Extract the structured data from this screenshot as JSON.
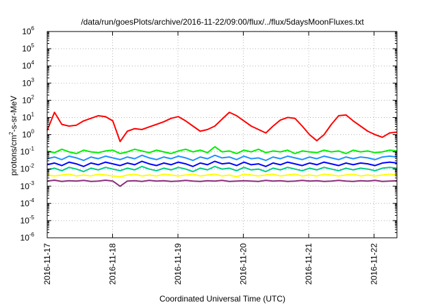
{
  "chart_data": {
    "type": "line",
    "title": "/data/run/goesPlots/archive/2016-11-22/09:00/flux/../flux/5daysMoonFluxes.txt",
    "xlabel": "Coordinated Universal Time (UTC)",
    "ylabel": {
      "base": "protons/cm",
      "sup": "2",
      "rest": "-s-sr-MeV"
    },
    "x_ticks": [
      "2016-11-17",
      "2016-11-18",
      "2016-11-19",
      "2016-11-20",
      "2016-11-21",
      "2016-11-22"
    ],
    "x_tick_days": [
      0,
      1,
      2,
      3,
      4,
      5
    ],
    "xlim_days": [
      0,
      5.35
    ],
    "y_scale": "log",
    "y_ticks": [
      {
        "base": "10",
        "exp": "-6"
      },
      {
        "base": "10",
        "exp": "-5"
      },
      {
        "base": "10",
        "exp": "-4"
      },
      {
        "base": "10",
        "exp": "-3"
      },
      {
        "base": "10",
        "exp": "-2"
      },
      {
        "base": "10",
        "exp": "-1"
      },
      {
        "base": "10",
        "exp": "0"
      },
      {
        "base": "10",
        "exp": "1"
      },
      {
        "base": "10",
        "exp": "2"
      },
      {
        "base": "10",
        "exp": "3"
      },
      {
        "base": "10",
        "exp": "4"
      },
      {
        "base": "10",
        "exp": "5"
      },
      {
        "base": "10",
        "exp": "6"
      }
    ],
    "ylim_log10": [
      -6,
      6
    ],
    "grid": true,
    "series": [
      {
        "color": "#ff0000",
        "y_log10": [
          0.25,
          1.3,
          0.6,
          0.5,
          0.55,
          0.8,
          0.95,
          1.1,
          1.05,
          0.8,
          -0.4,
          0.2,
          0.35,
          0.3,
          0.45,
          0.6,
          0.75,
          0.95,
          1.05,
          0.8,
          0.5,
          0.2,
          0.3,
          0.5,
          0.9,
          1.3,
          1.1,
          0.8,
          0.5,
          0.3,
          0.1,
          0.5,
          0.85,
          1.0,
          0.95,
          0.5,
          0,
          -0.35,
          0,
          0.6,
          1.1,
          1.15,
          0.8,
          0.5,
          0.2,
          0,
          -0.15,
          0.1,
          0.15
        ]
      },
      {
        "color": "#00ee00",
        "y_log10": [
          -0.95,
          -1.05,
          -0.85,
          -1.0,
          -1.1,
          -0.9,
          -1.0,
          -1.05,
          -0.95,
          -0.9,
          -1.1,
          -1.0,
          -0.85,
          -0.95,
          -1.05,
          -0.9,
          -1.0,
          -1.1,
          -0.95,
          -0.85,
          -1.0,
          -0.9,
          -1.05,
          -0.7,
          -1.0,
          -0.95,
          -1.1,
          -0.9,
          -1.0,
          -0.85,
          -1.05,
          -0.95,
          -1.0,
          -0.9,
          -1.1,
          -0.95,
          -1.0,
          -1.05,
          -0.9,
          -1.0,
          -0.95,
          -1.1,
          -0.9,
          -1.0,
          -0.95,
          -1.05,
          -1.0,
          -0.9,
          -0.95
        ]
      },
      {
        "color": "#1e90ff",
        "y_log10": [
          -1.4,
          -1.3,
          -1.45,
          -1.25,
          -1.35,
          -1.5,
          -1.3,
          -1.4,
          -1.25,
          -1.35,
          -1.45,
          -1.3,
          -1.4,
          -1.2,
          -1.35,
          -1.45,
          -1.3,
          -1.4,
          -1.25,
          -1.35,
          -1.5,
          -1.3,
          -1.4,
          -1.2,
          -1.35,
          -1.3,
          -1.45,
          -1.25,
          -1.4,
          -1.35,
          -1.5,
          -1.3,
          -1.4,
          -1.25,
          -1.35,
          -1.45,
          -1.3,
          -1.4,
          -1.25,
          -1.35,
          -1.45,
          -1.3,
          -1.4,
          -1.3,
          -1.35,
          -1.45,
          -1.3,
          -1.25,
          -1.3
        ]
      },
      {
        "color": "#0000ff",
        "y_log10": [
          -1.75,
          -1.65,
          -1.8,
          -1.6,
          -1.7,
          -1.85,
          -1.65,
          -1.75,
          -1.6,
          -1.7,
          -1.8,
          -1.65,
          -1.75,
          -1.55,
          -1.7,
          -1.8,
          -1.65,
          -1.75,
          -1.6,
          -1.7,
          -1.85,
          -1.65,
          -1.75,
          -1.55,
          -1.7,
          -1.65,
          -1.8,
          -1.6,
          -1.75,
          -1.7,
          -1.85,
          -1.65,
          -1.75,
          -1.6,
          -1.7,
          -1.8,
          -1.65,
          -1.75,
          -1.6,
          -1.7,
          -1.8,
          -1.65,
          -1.75,
          -1.65,
          -1.7,
          -1.8,
          -1.65,
          -1.6,
          -1.65
        ]
      },
      {
        "color": "#00cc88",
        "y_log10": [
          -2.05,
          -1.95,
          -2.1,
          -1.9,
          -2.0,
          -2.15,
          -1.95,
          -2.05,
          -1.9,
          -2.0,
          -2.1,
          -1.95,
          -2.05,
          -1.85,
          -2.0,
          -2.1,
          -1.95,
          -2.05,
          -1.9,
          -2.0,
          -2.15,
          -1.95,
          -2.05,
          -1.85,
          -2.0,
          -1.95,
          -2.1,
          -1.9,
          -2.05,
          -2.0,
          -2.15,
          -1.95,
          -2.05,
          -1.9,
          -2.0,
          -2.1,
          -1.95,
          -2.05,
          -1.9,
          -2.0,
          -2.1,
          -1.95,
          -2.05,
          -1.95,
          -2.0,
          -2.1,
          -1.95,
          -1.9,
          -1.95
        ]
      },
      {
        "color": "#ffff00",
        "y_log10": [
          -2.35,
          -2.4,
          -2.35,
          -2.3,
          -2.4,
          -2.35,
          -2.4,
          -2.3,
          -2.35,
          -2.4,
          -2.45,
          -2.35,
          -2.3,
          -2.4,
          -2.35,
          -2.4,
          -2.3,
          -2.35,
          -2.4,
          -2.35,
          -2.3,
          -2.4,
          -2.35,
          -2.3,
          -2.4,
          -2.35,
          -2.45,
          -2.3,
          -2.35,
          -2.4,
          -2.35,
          -2.3,
          -2.4,
          -2.35,
          -2.3,
          -2.4,
          -2.35,
          -2.4,
          -2.3,
          -2.35,
          -2.4,
          -2.35,
          -2.3,
          -2.4,
          -2.35,
          -2.4,
          -2.35,
          -2.3,
          -2.35
        ]
      },
      {
        "color": "#8b2b7a",
        "y_log10": [
          -2.7,
          -2.65,
          -2.72,
          -2.68,
          -2.7,
          -2.66,
          -2.72,
          -2.7,
          -2.65,
          -2.7,
          -3.0,
          -2.7,
          -2.68,
          -2.72,
          -2.66,
          -2.7,
          -2.68,
          -2.72,
          -2.7,
          -2.66,
          -2.7,
          -2.72,
          -2.68,
          -2.7,
          -2.66,
          -2.72,
          -2.7,
          -2.68,
          -2.7,
          -2.72,
          -2.66,
          -2.7,
          -2.68,
          -2.72,
          -2.7,
          -2.66,
          -2.7,
          -2.68,
          -2.72,
          -2.7,
          -2.66,
          -2.7,
          -2.72,
          -2.68,
          -2.7,
          -2.66,
          -2.72,
          -2.7,
          -2.68
        ]
      }
    ]
  }
}
